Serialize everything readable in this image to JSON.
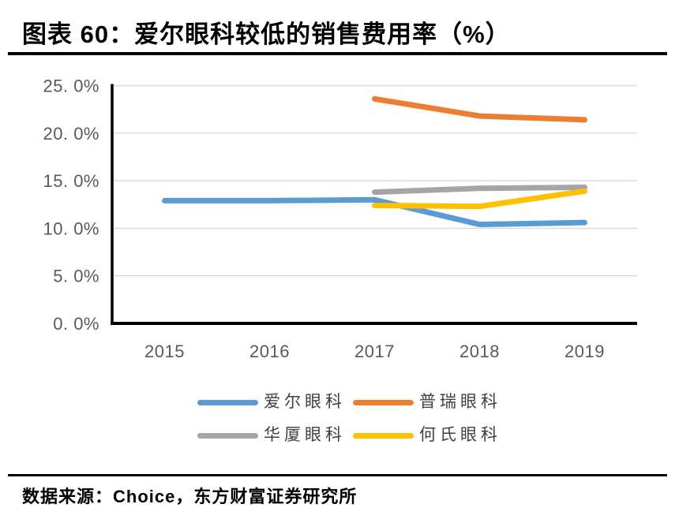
{
  "page": {
    "title": "图表 60：爱尔眼科较低的销售费用率（%）",
    "source": "数据来源：Choice，东方财富证券研究所"
  },
  "chart_data": {
    "type": "line",
    "title": "图表 60：爱尔眼科较低的销售费用率（%）",
    "categories": [
      "2015",
      "2016",
      "2017",
      "2018",
      "2019"
    ],
    "series": [
      {
        "key": "aier",
        "name": "爱尔眼科",
        "color": "#5B9BD5",
        "values": [
          12.9,
          12.9,
          13.0,
          10.4,
          10.6
        ]
      },
      {
        "key": "puri",
        "name": "普瑞眼科",
        "color": "#ED7D31",
        "values": [
          null,
          null,
          23.6,
          21.8,
          21.4
        ]
      },
      {
        "key": "huaxia",
        "name": "华厦眼科",
        "color": "#A5A5A5",
        "values": [
          null,
          null,
          13.8,
          14.2,
          14.3
        ]
      },
      {
        "key": "heshi",
        "name": "何氏眼科",
        "color": "#FFC000",
        "values": [
          null,
          null,
          12.4,
          12.3,
          13.9
        ]
      }
    ],
    "ylim": [
      0,
      25
    ],
    "ytick_step": 5,
    "ytick_labels": [
      "0. 0%",
      "5. 0%",
      "10. 0%",
      "15. 0%",
      "20. 0%",
      "25. 0%"
    ],
    "unit": "%",
    "grid": true,
    "legend_position": "bottom",
    "colors": {
      "axis_text": "#595959",
      "gridline": "#D9D9D9",
      "axis_line": "#000000"
    }
  }
}
